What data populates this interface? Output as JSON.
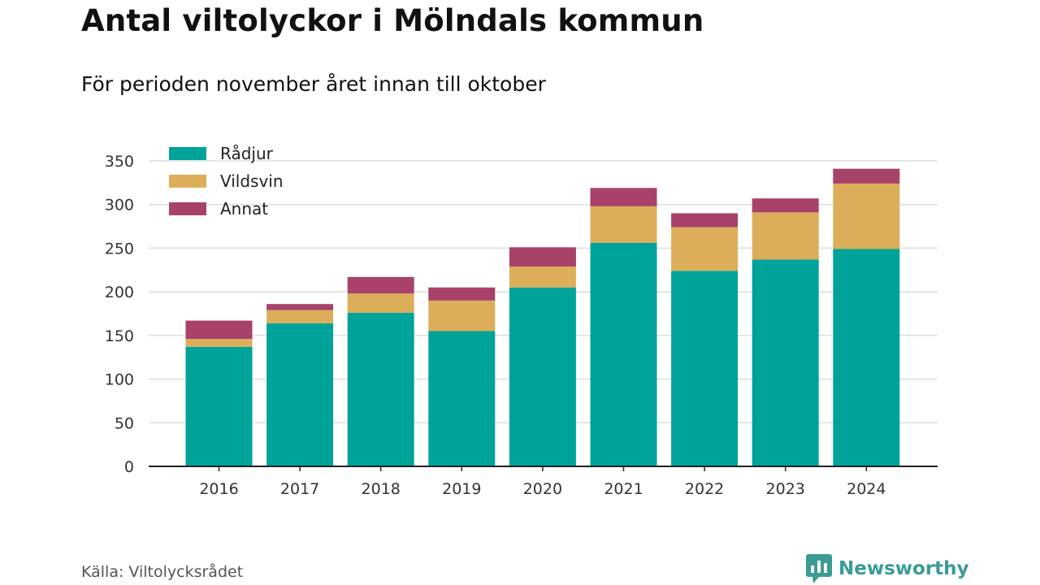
{
  "title": "Antal viltolyckor i Mölndals kommun",
  "subtitle": "För perioden november året innan till oktober",
  "source": "Källa: Viltolycksrådet",
  "brand": "Newsworthy",
  "colors": {
    "radjur": "#00a39a",
    "vildsvin": "#dcae5a",
    "annat": "#a8426a",
    "grid": "#dddddd",
    "axis": "#222222",
    "brand": "#3a9c94"
  },
  "chart_data": {
    "type": "bar",
    "stacked": true,
    "categories": [
      "2016",
      "2017",
      "2018",
      "2019",
      "2020",
      "2021",
      "2022",
      "2023",
      "2024"
    ],
    "series": [
      {
        "name": "Rådjur",
        "values": [
          137,
          164,
          176,
          155,
          205,
          256,
          224,
          237,
          249
        ]
      },
      {
        "name": "Vildsvin",
        "values": [
          9,
          15,
          22,
          35,
          24,
          42,
          50,
          54,
          75
        ]
      },
      {
        "name": "Annat",
        "values": [
          21,
          7,
          19,
          15,
          22,
          21,
          16,
          16,
          17
        ]
      }
    ],
    "yticks": [
      0,
      50,
      100,
      150,
      200,
      250,
      300,
      350
    ],
    "ylim": [
      0,
      350
    ],
    "grid": true,
    "legend_position": "top-left"
  }
}
